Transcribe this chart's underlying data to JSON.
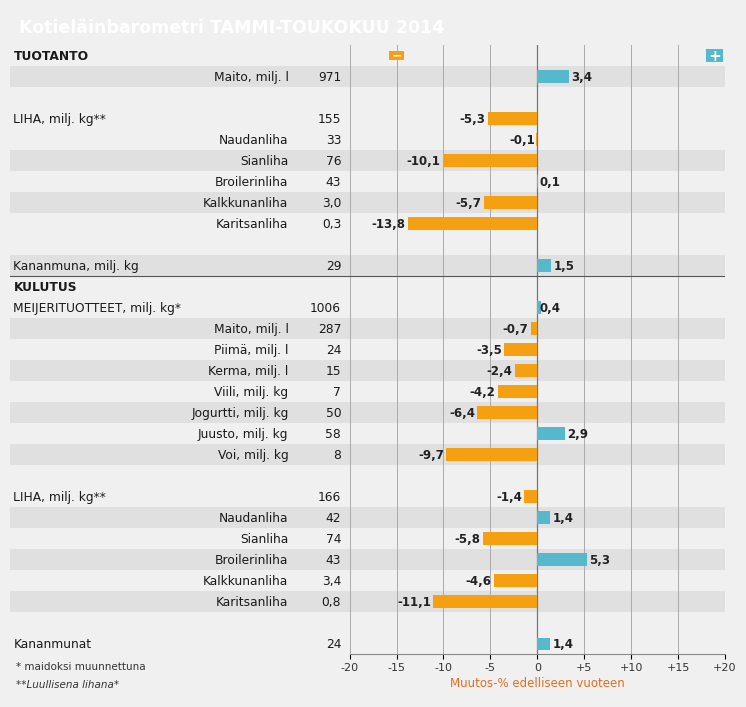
{
  "title": "Kotieläinbarometri TAMMI-TOUKOKUU 2014",
  "title_bg": "#cc0000",
  "title_color": "#ffffff",
  "footer_line1": "* maidoksi muunnettuna",
  "footer_line2": "**Luullisena lihana*",
  "xlabel": "Muutos-% edelliseen vuoteen",
  "xlabel_color": "#e07020",
  "xticks": [
    -20,
    -15,
    -10,
    -5,
    0,
    5,
    10,
    15,
    20
  ],
  "xtick_labels": [
    "-20",
    "-15",
    "-10",
    "-5",
    "0",
    "+5",
    "+10",
    "+15",
    "+20"
  ],
  "orange": "#f5a011",
  "cyan": "#55b8cc",
  "rows": [
    {
      "label": "TUOTANTO",
      "amount": "",
      "value": null,
      "bold": true,
      "indent": 0,
      "bg": "#f0f0f0",
      "sep_below": false
    },
    {
      "label": "Maito, milj. l",
      "amount": "971",
      "value": 3.4,
      "bold": false,
      "indent": 2,
      "bg": "#e0e0e0",
      "sep_below": false
    },
    {
      "label": "",
      "amount": "",
      "value": null,
      "bold": false,
      "indent": 0,
      "bg": "#f0f0f0",
      "sep_below": false
    },
    {
      "label": "LIHA, milj. kg**",
      "amount": "155",
      "value": -5.3,
      "bold": false,
      "indent": 0,
      "bg": "#f0f0f0",
      "sep_below": false
    },
    {
      "label": "Naudanliha",
      "amount": "33",
      "value": -0.1,
      "bold": false,
      "indent": 2,
      "bg": "#f0f0f0",
      "sep_below": false
    },
    {
      "label": "Sianliha",
      "amount": "76",
      "value": -10.1,
      "bold": false,
      "indent": 2,
      "bg": "#e0e0e0",
      "sep_below": false
    },
    {
      "label": "Broilerinliha",
      "amount": "43",
      "value": 0.1,
      "bold": false,
      "indent": 2,
      "bg": "#f0f0f0",
      "sep_below": false
    },
    {
      "label": "Kalkkunanliha",
      "amount": "3,0",
      "value": -5.7,
      "bold": false,
      "indent": 2,
      "bg": "#e0e0e0",
      "sep_below": false
    },
    {
      "label": "Karitsanliha",
      "amount": "0,3",
      "value": -13.8,
      "bold": false,
      "indent": 2,
      "bg": "#f0f0f0",
      "sep_below": false
    },
    {
      "label": "",
      "amount": "",
      "value": null,
      "bold": false,
      "indent": 0,
      "bg": "#f0f0f0",
      "sep_below": false
    },
    {
      "label": "Kananmuna, milj. kg",
      "amount": "29",
      "value": 1.5,
      "bold": false,
      "indent": 0,
      "bg": "#e0e0e0",
      "sep_below": true
    },
    {
      "label": "KULUTUS",
      "amount": "",
      "value": null,
      "bold": true,
      "indent": 0,
      "bg": "#f0f0f0",
      "sep_below": false
    },
    {
      "label": "MEIJERITUOTTEET, milj. kg*",
      "amount": "1006",
      "value": 0.4,
      "bold": false,
      "indent": 0,
      "bg": "#f0f0f0",
      "sep_below": false
    },
    {
      "label": "Maito, milj. l",
      "amount": "287",
      "value": -0.7,
      "bold": false,
      "indent": 2,
      "bg": "#e0e0e0",
      "sep_below": false
    },
    {
      "label": "Piimä, milj. l",
      "amount": "24",
      "value": -3.5,
      "bold": false,
      "indent": 2,
      "bg": "#f0f0f0",
      "sep_below": false
    },
    {
      "label": "Kerma, milj. l",
      "amount": "15",
      "value": -2.4,
      "bold": false,
      "indent": 2,
      "bg": "#e0e0e0",
      "sep_below": false
    },
    {
      "label": "Viili, milj. kg",
      "amount": "7",
      "value": -4.2,
      "bold": false,
      "indent": 2,
      "bg": "#f0f0f0",
      "sep_below": false
    },
    {
      "label": "Jogurtti, milj. kg",
      "amount": "50",
      "value": -6.4,
      "bold": false,
      "indent": 2,
      "bg": "#e0e0e0",
      "sep_below": false
    },
    {
      "label": "Juusto, milj. kg",
      "amount": "58",
      "value": 2.9,
      "bold": false,
      "indent": 2,
      "bg": "#f0f0f0",
      "sep_below": false
    },
    {
      "label": "Voi, milj. kg",
      "amount": "8",
      "value": -9.7,
      "bold": false,
      "indent": 2,
      "bg": "#e0e0e0",
      "sep_below": false
    },
    {
      "label": "",
      "amount": "",
      "value": null,
      "bold": false,
      "indent": 0,
      "bg": "#f0f0f0",
      "sep_below": false
    },
    {
      "label": "LIHA, milj. kg**",
      "amount": "166",
      "value": -1.4,
      "bold": false,
      "indent": 0,
      "bg": "#f0f0f0",
      "sep_below": false
    },
    {
      "label": "Naudanliha",
      "amount": "42",
      "value": 1.4,
      "bold": false,
      "indent": 2,
      "bg": "#e0e0e0",
      "sep_below": false
    },
    {
      "label": "Sianliha",
      "amount": "74",
      "value": -5.8,
      "bold": false,
      "indent": 2,
      "bg": "#f0f0f0",
      "sep_below": false
    },
    {
      "label": "Broilerinliha",
      "amount": "43",
      "value": 5.3,
      "bold": false,
      "indent": 2,
      "bg": "#e0e0e0",
      "sep_below": false
    },
    {
      "label": "Kalkkunanliha",
      "amount": "3,4",
      "value": -4.6,
      "bold": false,
      "indent": 2,
      "bg": "#f0f0f0",
      "sep_below": false
    },
    {
      "label": "Karitsanliha",
      "amount": "0,8",
      "value": -11.1,
      "bold": false,
      "indent": 2,
      "bg": "#e0e0e0",
      "sep_below": false
    },
    {
      "label": "",
      "amount": "",
      "value": null,
      "bold": false,
      "indent": 0,
      "bg": "#f0f0f0",
      "sep_below": false
    },
    {
      "label": "Kananmunat",
      "amount": "24",
      "value": 1.4,
      "bold": false,
      "indent": 0,
      "bg": "#f0f0f0",
      "sep_below": false
    }
  ]
}
